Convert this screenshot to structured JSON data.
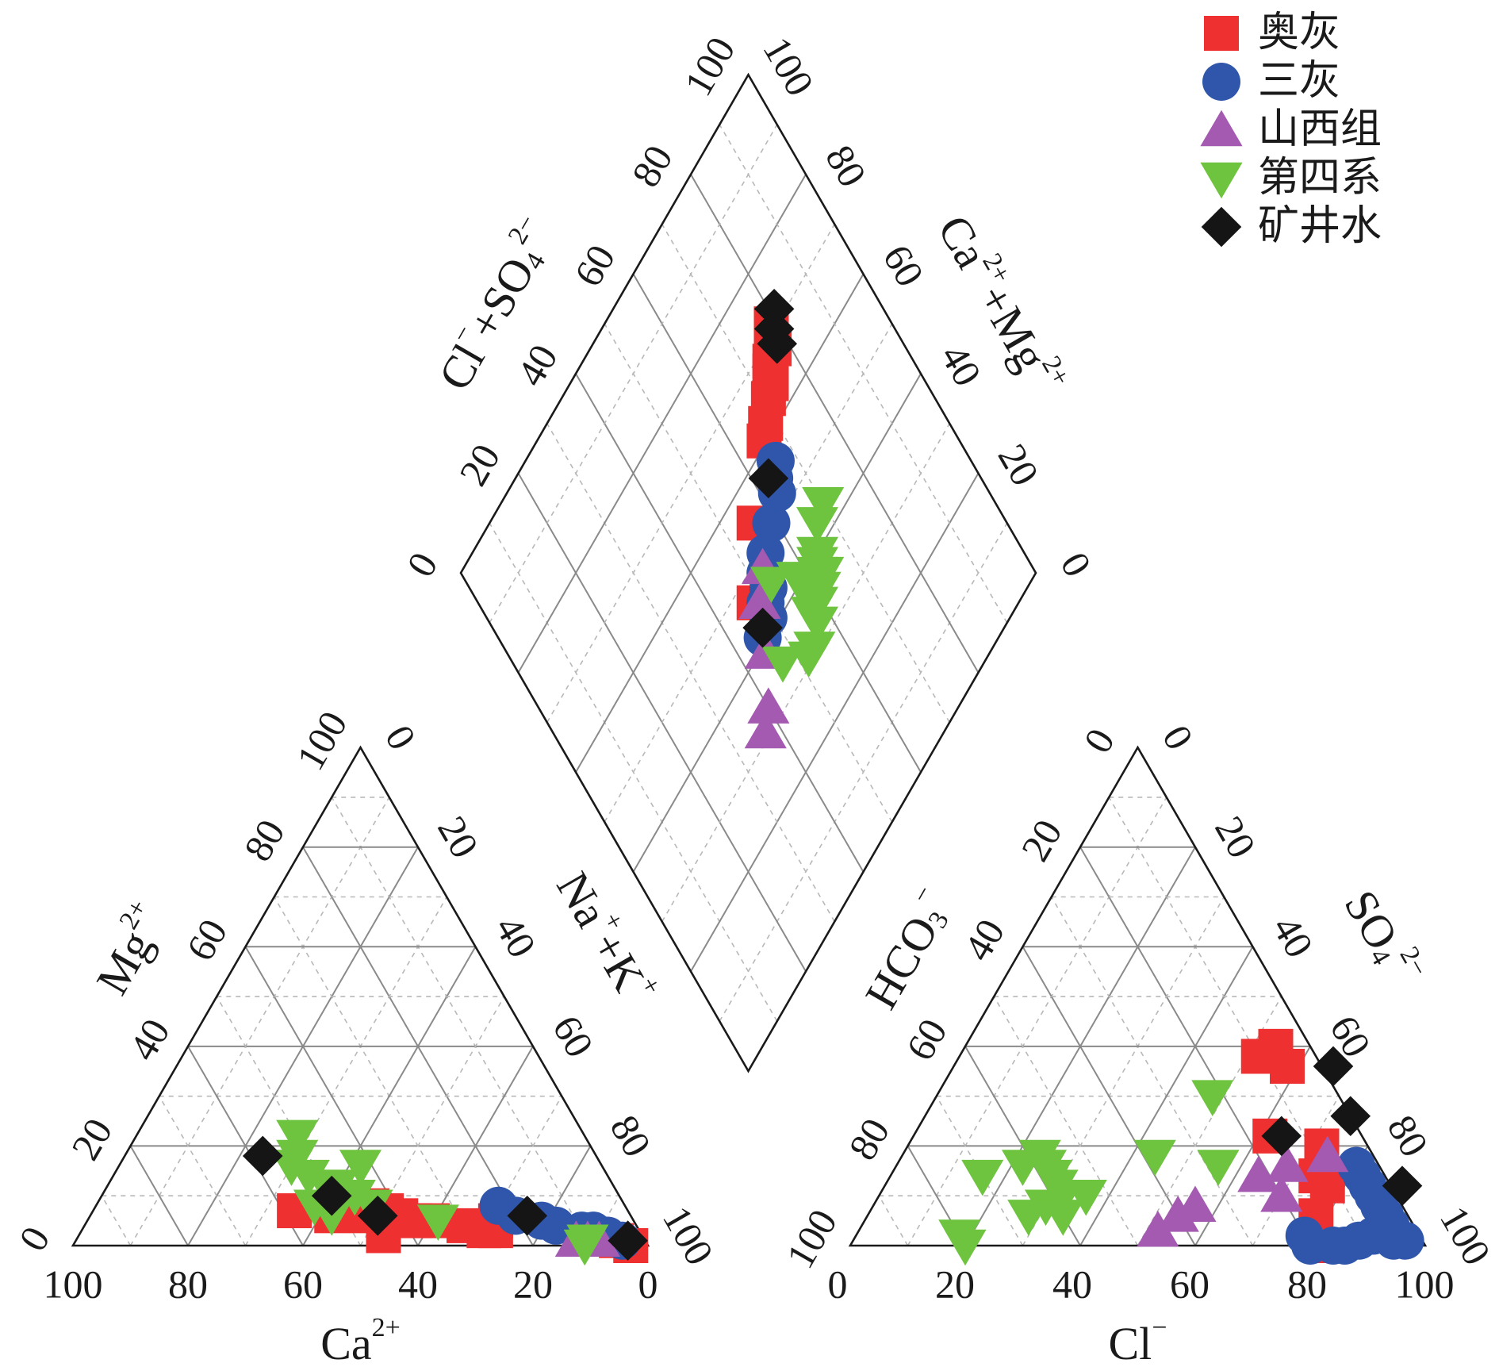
{
  "chart_data": {
    "type": "scatter",
    "subtype": "piper",
    "colors": {
      "奥灰": "#ee3030",
      "三灰": "#2f56aa",
      "山西组": "#a35ab0",
      "第四系": "#6fc43f",
      "矿井水": "#151515",
      "frame": "#1a1a1a",
      "grid_major": "#8a8a8a",
      "grid_minor": "#b8b8b8"
    },
    "axes": {
      "cation": {
        "bottom": {
          "base": "Ca",
          "sup": "2+",
          "ticks": [
            "100",
            "80",
            "60",
            "40",
            "20",
            "0"
          ]
        },
        "left": {
          "base": "Mg",
          "sup": "2+",
          "ticks": [
            "0",
            "20",
            "40",
            "60",
            "80",
            "100"
          ]
        },
        "right": {
          "base": "Na",
          "sup": "+",
          "plus": "+",
          "base2": "K",
          "sup2": "+",
          "ticks": [
            "0",
            "20",
            "40",
            "60",
            "80",
            "100"
          ]
        },
        "range": [
          0,
          100
        ]
      },
      "anion": {
        "bottom": {
          "base": "Cl",
          "sup": "−",
          "ticks": [
            "0",
            "20",
            "40",
            "60",
            "80",
            "100"
          ]
        },
        "left": {
          "base": "HCO",
          "sub": "3",
          "sup": "−",
          "ticks": [
            "100",
            "80",
            "60",
            "40",
            "20",
            "0"
          ]
        },
        "right": {
          "base": "SO",
          "sub": "4",
          "sup": "2−",
          "ticks": [
            "0",
            "20",
            "40",
            "60",
            "80",
            "100"
          ]
        },
        "range": [
          0,
          100
        ]
      },
      "diamond": {
        "left": {
          "base": "Cl",
          "sup": "−",
          "plus": "+",
          "base2": "SO",
          "sub2": "4",
          "sup2": "2−",
          "ticks": [
            "0",
            "20",
            "40",
            "60",
            "80",
            "100"
          ]
        },
        "right": {
          "base": "Ca",
          "sup": "2+",
          "plus": "+",
          "base2": "Mg",
          "sup2": "2+",
          "ticks": [
            "0",
            "20",
            "40",
            "60",
            "80",
            "100"
          ]
        },
        "range": [
          0,
          100
        ]
      }
    },
    "legend": {
      "placement": "top-right",
      "entries": [
        {
          "name": "奥灰",
          "marker": "square"
        },
        {
          "name": "三灰",
          "marker": "circle"
        },
        {
          "name": "山西组",
          "marker": "triangle-up"
        },
        {
          "name": "第四系",
          "marker": "triangle-down"
        },
        {
          "name": "矿井水",
          "marker": "diamond"
        }
      ]
    },
    "series": [
      {
        "name": "奥灰",
        "cation_points": [
          {
            "Ca": 58,
            "Mg": 7
          },
          {
            "Ca": 52,
            "Mg": 6
          },
          {
            "Ca": 48,
            "Mg": 8
          },
          {
            "Ca": 46,
            "Mg": 6
          },
          {
            "Ca": 44,
            "Mg": 8
          },
          {
            "Ca": 42,
            "Mg": 7
          },
          {
            "Ca": 40,
            "Mg": 6
          },
          {
            "Ca": 38,
            "Mg": 5
          },
          {
            "Ca": 35,
            "Mg": 5
          },
          {
            "Ca": 30,
            "Mg": 4
          },
          {
            "Ca": 27,
            "Mg": 3
          },
          {
            "Ca": 25,
            "Mg": 3
          },
          {
            "Ca": 24,
            "Mg": 5
          },
          {
            "Ca": 45,
            "Mg": 2
          },
          {
            "Ca": 5,
            "Mg": 1
          },
          {
            "Ca": 3,
            "Mg": 0
          }
        ],
        "anion_points": [
          {
            "Cl": 52,
            "SO4": 38
          },
          {
            "Cl": 54,
            "SO4": 40
          },
          {
            "Cl": 58,
            "SO4": 36
          },
          {
            "Cl": 62,
            "SO4": 22
          },
          {
            "Cl": 72,
            "SO4": 20
          },
          {
            "Cl": 74,
            "SO4": 14
          },
          {
            "Cl": 77,
            "SO4": 12
          },
          {
            "Cl": 78,
            "SO4": 6
          },
          {
            "Cl": 84,
            "SO4": 0
          },
          {
            "Cl": 82,
            "SO4": 0
          }
        ],
        "diamond_points": [
          {
            "ClSO4": 42,
            "CaMg": 58
          },
          {
            "ClSO4": 38,
            "CaMg": 54
          },
          {
            "ClSO4": 36,
            "CaMg": 54
          },
          {
            "ClSO4": 35,
            "CaMg": 50
          },
          {
            "ClSO4": 33,
            "CaMg": 48
          },
          {
            "ClSO4": 30,
            "CaMg": 46
          },
          {
            "ClSO4": 28,
            "CaMg": 42
          },
          {
            "ClSO4": 24,
            "CaMg": 36
          },
          {
            "ClSO4": 8,
            "CaMg": 12
          },
          {
            "ClSO4": 21,
            "CaMg": 32
          },
          {
            "ClSO4": -8,
            "CaMg": -4
          }
        ]
      },
      {
        "name": "三灰",
        "cation_points": [
          {
            "Ca": 22,
            "Mg": 8
          },
          {
            "Ca": 20,
            "Mg": 6
          },
          {
            "Ca": 16,
            "Mg": 5
          },
          {
            "Ca": 14,
            "Mg": 4
          },
          {
            "Ca": 10,
            "Mg": 3
          },
          {
            "Ca": 8,
            "Mg": 3
          },
          {
            "Ca": 6,
            "Mg": 2
          },
          {
            "Ca": 4,
            "Mg": 1
          }
        ],
        "anion_points": [
          {
            "Cl": 80,
            "SO4": 16
          },
          {
            "Cl": 82,
            "SO4": 14
          },
          {
            "Cl": 84,
            "SO4": 12
          },
          {
            "Cl": 86,
            "SO4": 10
          },
          {
            "Cl": 88,
            "SO4": 8
          },
          {
            "Cl": 90,
            "SO4": 6
          },
          {
            "Cl": 92,
            "SO4": 4
          },
          {
            "Cl": 90,
            "SO4": 2
          },
          {
            "Cl": 88,
            "SO4": 1
          },
          {
            "Cl": 86,
            "SO4": 0
          },
          {
            "Cl": 84,
            "SO4": 0
          },
          {
            "Cl": 80,
            "SO4": 0
          },
          {
            "Cl": 78,
            "SO4": 2
          },
          {
            "Cl": 94,
            "SO4": 1
          },
          {
            "Cl": 96,
            "SO4": 1
          }
        ],
        "diamond_points": [
          {
            "ClSO4": 13,
            "CaMg": 32
          },
          {
            "ClSO4": 10,
            "CaMg": 28
          },
          {
            "ClSO4": 6,
            "CaMg": 26
          },
          {
            "ClSO4": 2,
            "CaMg": 18
          },
          {
            "ClSO4": -2,
            "CaMg": 10
          },
          {
            "ClSO4": -6,
            "CaMg": 6
          },
          {
            "ClSO4": -10,
            "CaMg": 4
          },
          {
            "ClSO4": -12,
            "CaMg": 0
          },
          {
            "ClSO4": -16,
            "CaMg": -2
          },
          {
            "ClSO4": -18,
            "CaMg": -8
          }
        ]
      },
      {
        "name": "山西组",
        "cation_points": [
          {
            "Ca": 12,
            "Mg": 1
          },
          {
            "Ca": 10,
            "Mg": 1
          },
          {
            "Ca": 8,
            "Mg": 1
          }
        ],
        "anion_points": [
          {
            "Cl": 64,
            "SO4": 14
          },
          {
            "Cl": 68,
            "SO4": 16
          },
          {
            "Cl": 74,
            "SO4": 18
          },
          {
            "Cl": 70,
            "SO4": 10
          },
          {
            "Cl": 56,
            "SO4": 8
          },
          {
            "Cl": 54,
            "SO4": 6
          },
          {
            "Cl": 52,
            "SO4": 3
          }
        ],
        "diamond_points": [
          {
            "ClSO4": -4,
            "CaMg": 6
          },
          {
            "ClSO4": -10,
            "CaMg": -2
          },
          {
            "ClSO4": -22,
            "CaMg": -10
          },
          {
            "ClSO4": -34,
            "CaMg": -20
          },
          {
            "ClSO4": -38,
            "CaMg": -26
          }
        ]
      },
      {
        "name": "第四系",
        "cation_points": [
          {
            "Ca": 50,
            "Mg": 22
          },
          {
            "Ca": 52,
            "Mg": 18
          },
          {
            "Ca": 54,
            "Mg": 16
          },
          {
            "Ca": 52,
            "Mg": 14
          },
          {
            "Ca": 50,
            "Mg": 12
          },
          {
            "Ca": 48,
            "Mg": 12
          },
          {
            "Ca": 46,
            "Mg": 10
          },
          {
            "Ca": 44,
            "Mg": 8
          },
          {
            "Ca": 54,
            "Mg": 8
          },
          {
            "Ca": 52,
            "Mg": 6
          },
          {
            "Ca": 42,
            "Mg": 16
          },
          {
            "Ca": 34,
            "Mg": 5
          },
          {
            "Ca": 10,
            "Mg": 1
          },
          {
            "Ca": 11,
            "Mg": 0
          }
        ],
        "anion_points": [
          {
            "Cl": 16,
            "SO4": 14
          },
          {
            "Cl": 22,
            "SO4": 16
          },
          {
            "Cl": 24,
            "SO4": 18
          },
          {
            "Cl": 26,
            "SO4": 16
          },
          {
            "Cl": 28,
            "SO4": 14
          },
          {
            "Cl": 30,
            "SO4": 12
          },
          {
            "Cl": 32,
            "SO4": 10
          },
          {
            "Cl": 30,
            "SO4": 8
          },
          {
            "Cl": 28,
            "SO4": 6
          },
          {
            "Cl": 34,
            "SO4": 6
          },
          {
            "Cl": 36,
            "SO4": 10
          },
          {
            "Cl": 44,
            "SO4": 18
          },
          {
            "Cl": 48,
            "SO4": 30
          },
          {
            "Cl": 56,
            "SO4": 16
          },
          {
            "Cl": 18,
            "SO4": 2
          },
          {
            "Cl": 20,
            "SO4": 0
          }
        ],
        "diamond_points": [
          {
            "ClSO4": -12,
            "CaMg": 40
          },
          {
            "ClSO4": -14,
            "CaMg": 34
          },
          {
            "ClSO4": -20,
            "CaMg": 28
          },
          {
            "ClSO4": -22,
            "CaMg": 26
          },
          {
            "ClSO4": -24,
            "CaMg": 24
          },
          {
            "ClSO4": -26,
            "CaMg": 26
          },
          {
            "ClSO4": -26,
            "CaMg": 22
          },
          {
            "ClSO4": -28,
            "CaMg": 22
          },
          {
            "ClSO4": -30,
            "CaMg": 18
          },
          {
            "ClSO4": -30,
            "CaMg": 14
          },
          {
            "ClSO4": -34,
            "CaMg": 14
          },
          {
            "ClSO4": -38,
            "CaMg": 8
          },
          {
            "ClSO4": -38,
            "CaMg": 4
          },
          {
            "ClSO4": -22,
            "CaMg": 16
          },
          {
            "ClSO4": -18,
            "CaMg": 16
          },
          {
            "ClSO4": -10,
            "CaMg": 6
          },
          {
            "ClSO4": -30,
            "CaMg": -6
          }
        ]
      },
      {
        "name": "矿井水",
        "cation_points": [
          {
            "Ca": 58,
            "Mg": 18
          },
          {
            "Ca": 50,
            "Mg": 10
          },
          {
            "Ca": 44,
            "Mg": 6
          },
          {
            "Ca": 18,
            "Mg": 6
          },
          {
            "Ca": 3,
            "Mg": 1
          }
        ],
        "anion_points": [
          {
            "Cl": 66,
            "SO4": 36
          },
          {
            "Cl": 74,
            "SO4": 26
          },
          {
            "Cl": 64,
            "SO4": 22
          },
          {
            "Cl": 90,
            "SO4": 12
          }
        ],
        "diamond_points": [
          {
            "ClSO4": 44,
            "CaMg": 62
          },
          {
            "ClSO4": 40,
            "CaMg": 58
          },
          {
            "ClSO4": 36,
            "CaMg": 56
          },
          {
            "ClSO4": 12,
            "CaMg": 26
          },
          {
            "ClSO4": -16,
            "CaMg": -6
          }
        ]
      }
    ]
  }
}
